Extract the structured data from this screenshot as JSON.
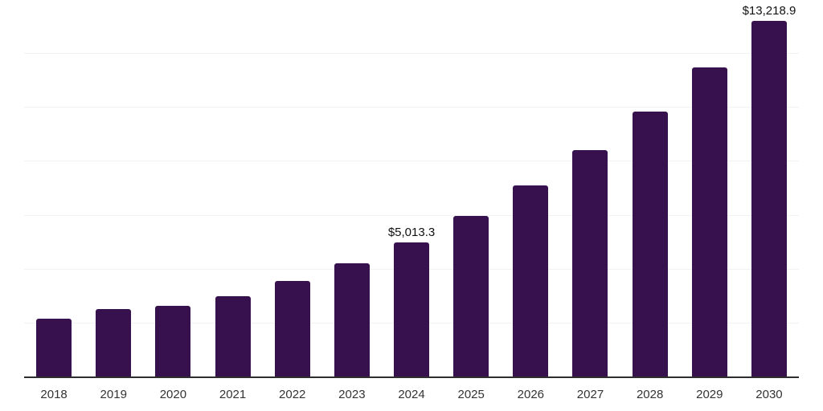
{
  "chart_data": {
    "type": "bar",
    "title": "",
    "xlabel": "",
    "ylabel": "",
    "categories": [
      "2018",
      "2019",
      "2020",
      "2021",
      "2022",
      "2023",
      "2024",
      "2025",
      "2026",
      "2027",
      "2028",
      "2029",
      "2030"
    ],
    "values": [
      2180,
      2520,
      2650,
      3010,
      3570,
      4240,
      5013.3,
      6000,
      7110,
      8440,
      9870,
      11490,
      13218.9
    ],
    "value_labels": [
      "",
      "",
      "",
      "",
      "",
      "",
      "$5,013.3",
      "",
      "",
      "",
      "",
      "",
      "$13,218.9"
    ],
    "ylim": [
      0,
      14000
    ],
    "gridlines": [
      2000,
      4000,
      6000,
      8000,
      10000,
      12000,
      14000
    ],
    "grid": "horizontal",
    "legend": "none",
    "colors": {
      "bar": "#36114d",
      "gridline": "#f2f2f2",
      "axis_line": "#2e2e2e",
      "tick_label": "#333333",
      "data_label": "#111111"
    }
  }
}
